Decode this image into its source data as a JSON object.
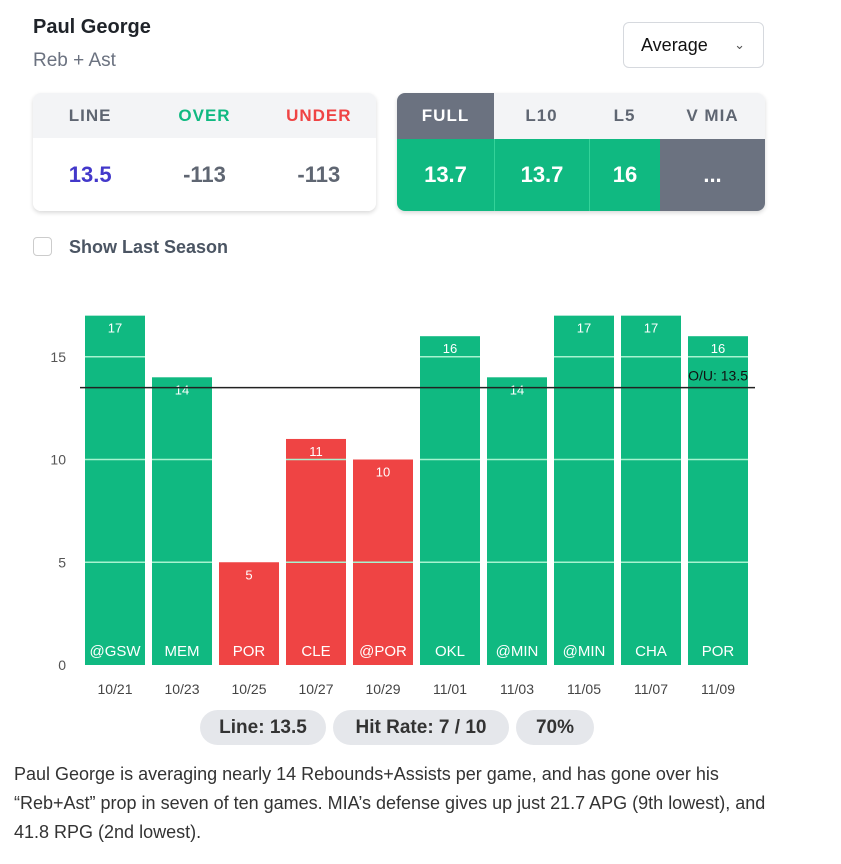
{
  "header": {
    "player": "Paul George",
    "market": "Reb + Ast",
    "dropdown": "Average"
  },
  "odds": {
    "headers": [
      "LINE",
      "OVER",
      "UNDER"
    ],
    "values": [
      "13.5",
      "-113",
      "-113"
    ]
  },
  "stats": {
    "headers": [
      "FULL",
      "L10",
      "L5",
      "V MIA"
    ],
    "values": [
      "13.7",
      "13.7",
      "16",
      "..."
    ]
  },
  "checkbox": {
    "label": "Show Last Season",
    "checked": false
  },
  "colors": {
    "over": "#10b981",
    "under": "#ef4444",
    "line": "#4338ca"
  },
  "chart_data": {
    "type": "bar",
    "categories": [
      "10/21",
      "10/23",
      "10/25",
      "10/27",
      "10/29",
      "11/01",
      "11/03",
      "11/05",
      "11/07",
      "11/09"
    ],
    "opponents": [
      "@GSW",
      "MEM",
      "POR",
      "CLE",
      "@POR",
      "OKL",
      "@MIN",
      "@MIN",
      "CHA",
      "POR"
    ],
    "values": [
      17,
      14,
      5,
      11,
      10,
      16,
      14,
      17,
      17,
      16
    ],
    "line": 13.5,
    "line_label": "O/U: 13.5",
    "yticks": [
      0,
      5,
      10,
      15
    ],
    "ylim": [
      0,
      17
    ],
    "grid": true
  },
  "summary": {
    "line": "Line: 13.5",
    "hit_rate": "Hit Rate: 7 / 10",
    "pct": "70%"
  },
  "description": "Paul George is averaging nearly 14 Rebounds+Assists per game, and has gone over his “Reb+Ast” prop in seven of ten games. MIA’s defense gives up just 21.7 APG (9th lowest), and 41.8 RPG (2nd lowest)."
}
